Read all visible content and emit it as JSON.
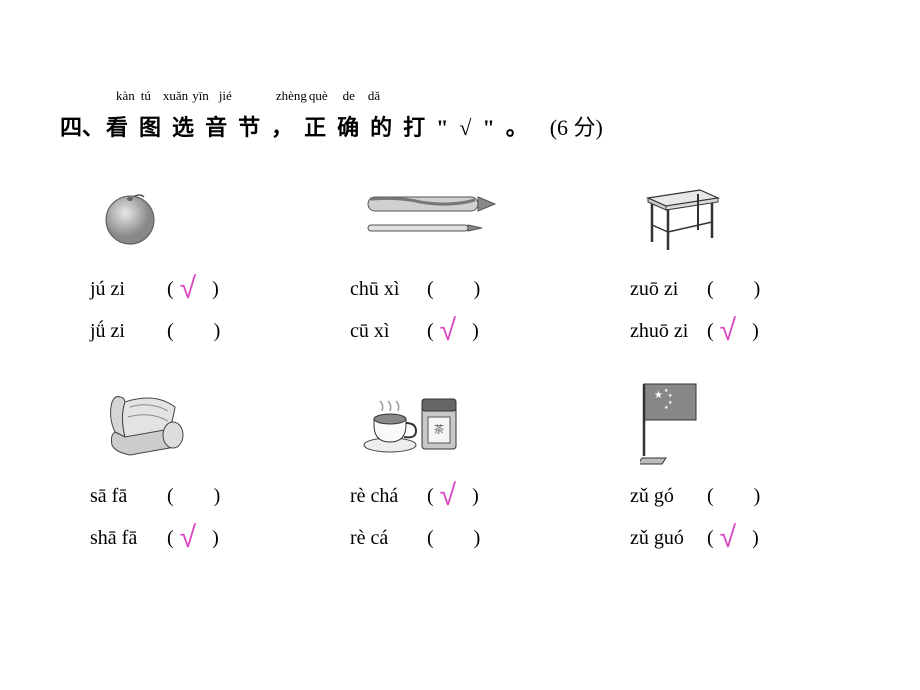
{
  "title": {
    "number": "四、",
    "pinyin": [
      "kàn",
      "tú",
      "xuǎn",
      "yīn",
      "jié",
      "",
      "zhèng",
      "què",
      "de",
      "dǎ"
    ],
    "pinyin_gaps": [
      6,
      12,
      4,
      10,
      14,
      30,
      2,
      15,
      13,
      0
    ],
    "hanzi": [
      "看",
      "图",
      "选",
      "音",
      "节",
      "，",
      "正",
      "确",
      "的",
      "打",
      "\"",
      "√",
      "\"",
      "。"
    ],
    "score": "(6 分)"
  },
  "items": [
    {
      "icon": "orange",
      "options": [
        {
          "text": "jú zi",
          "correct": true
        },
        {
          "text": "jǘ zi",
          "correct": false
        }
      ]
    },
    {
      "icon": "pencils",
      "options": [
        {
          "text": "chū xì",
          "correct": false
        },
        {
          "text": "cū xì",
          "correct": true
        }
      ]
    },
    {
      "icon": "desk",
      "options": [
        {
          "text": "zuō zi",
          "correct": false
        },
        {
          "text": "zhuō zi",
          "correct": true
        }
      ]
    },
    {
      "icon": "sofa",
      "options": [
        {
          "text": "sā fā",
          "correct": false
        },
        {
          "text": "shā fā",
          "correct": true
        }
      ]
    },
    {
      "icon": "tea",
      "options": [
        {
          "text": "rè chá",
          "correct": true
        },
        {
          "text": "rè cá",
          "correct": false
        }
      ]
    },
    {
      "icon": "flag",
      "options": [
        {
          "text": "zǔ gó",
          "correct": false
        },
        {
          "text": "zǔ guó",
          "correct": true
        }
      ]
    }
  ],
  "check_glyph": "√",
  "check_color": "#d946c2"
}
